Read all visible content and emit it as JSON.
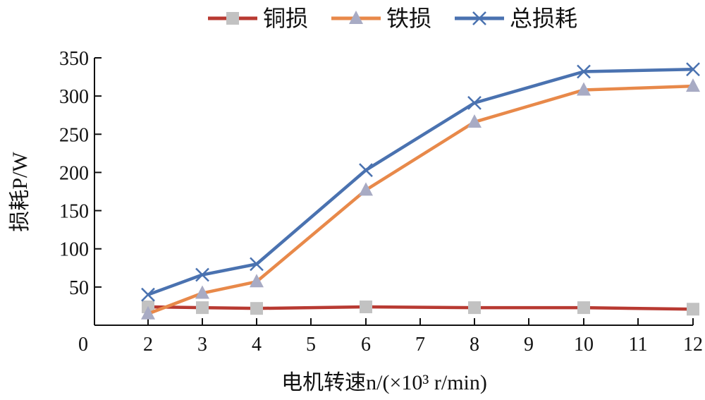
{
  "chart_data": {
    "type": "line",
    "ylabel": "损耗P/W",
    "xlabel": "电机转速n/(×10³ r/min)",
    "xlim": [
      0,
      12
    ],
    "ylim": [
      0,
      350
    ],
    "x_ticks": [
      "0",
      "2",
      "3",
      "4",
      "5",
      "6",
      "7",
      "8",
      "9",
      "10",
      "11",
      "12"
    ],
    "y_ticks": [
      "50",
      "100",
      "150",
      "200",
      "250",
      "300",
      "350"
    ],
    "grid": false,
    "legend_position": "top",
    "x": [
      2,
      3,
      4,
      6,
      8,
      10,
      12
    ],
    "series": [
      {
        "name": "铜损",
        "color": "#b83a32",
        "marker": "square",
        "marker_color": "#c2c2c2",
        "values": [
          24,
          23,
          22,
          24,
          23,
          23,
          21
        ]
      },
      {
        "name": "铁损",
        "color": "#e8894a",
        "marker": "triangle",
        "marker_color": "#a8abc4",
        "values": [
          15,
          42,
          57,
          177,
          266,
          308,
          313
        ]
      },
      {
        "name": "总损耗",
        "color": "#4a72b0",
        "marker": "x",
        "marker_color": "#4a72b0",
        "values": [
          40,
          66,
          80,
          203,
          291,
          332,
          335
        ]
      }
    ]
  }
}
